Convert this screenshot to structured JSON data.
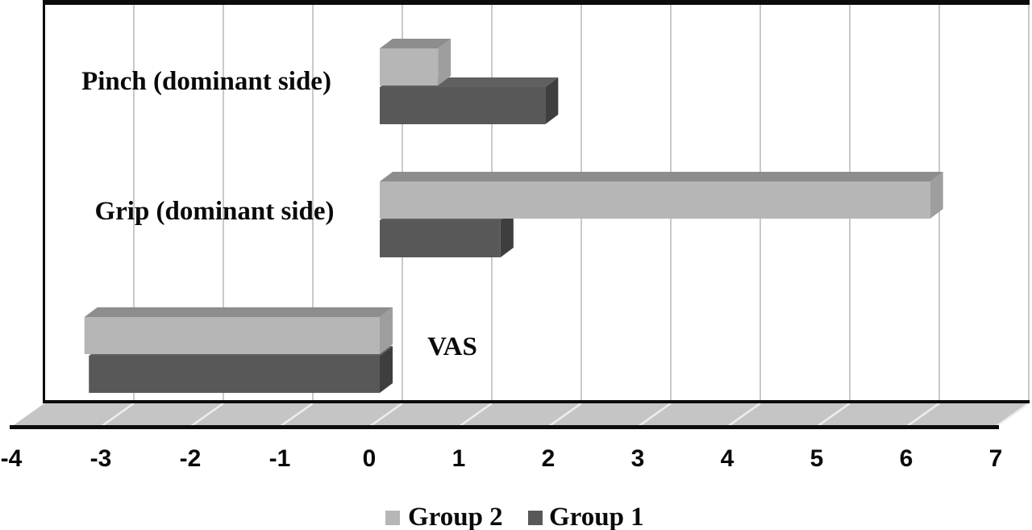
{
  "chart_data": {
    "type": "bar",
    "orientation": "horizontal",
    "style": "3d",
    "title": "",
    "xlabel": "",
    "ylabel": "",
    "categories": [
      "Pinch (dominant side)",
      "Grip (dominant side)",
      "VAS"
    ],
    "series": [
      {
        "name": "Group 2",
        "color": "#b6b6b6",
        "color_top": "#8d8d8d",
        "color_side": "#9e9e9e",
        "values": [
          0.65,
          6.15,
          -3.3
        ]
      },
      {
        "name": "Group 1",
        "color": "#585858",
        "color_top": "#606060",
        "color_side": "#3e3e3e",
        "values": [
          1.85,
          1.35,
          -3.25
        ]
      }
    ],
    "xlim": [
      -4,
      7
    ],
    "xticks": [
      -4,
      -3,
      -2,
      -1,
      0,
      1,
      2,
      3,
      4,
      5,
      6,
      7
    ],
    "xtick_labels": [
      "-4",
      "-3",
      "-2",
      "-1",
      "0",
      "1",
      "2",
      "3",
      "4",
      "5",
      "6",
      "7"
    ],
    "grid": true,
    "legend": {
      "position": "bottom",
      "entries": [
        "Group 2",
        "Group 1"
      ]
    },
    "colors": {
      "background": "#ffffff",
      "wall_gridline": "#c9c9c9",
      "floor": "#c5c5c5",
      "floor_gridline": "#eeeeee",
      "frame": "#0c0c0c"
    }
  }
}
